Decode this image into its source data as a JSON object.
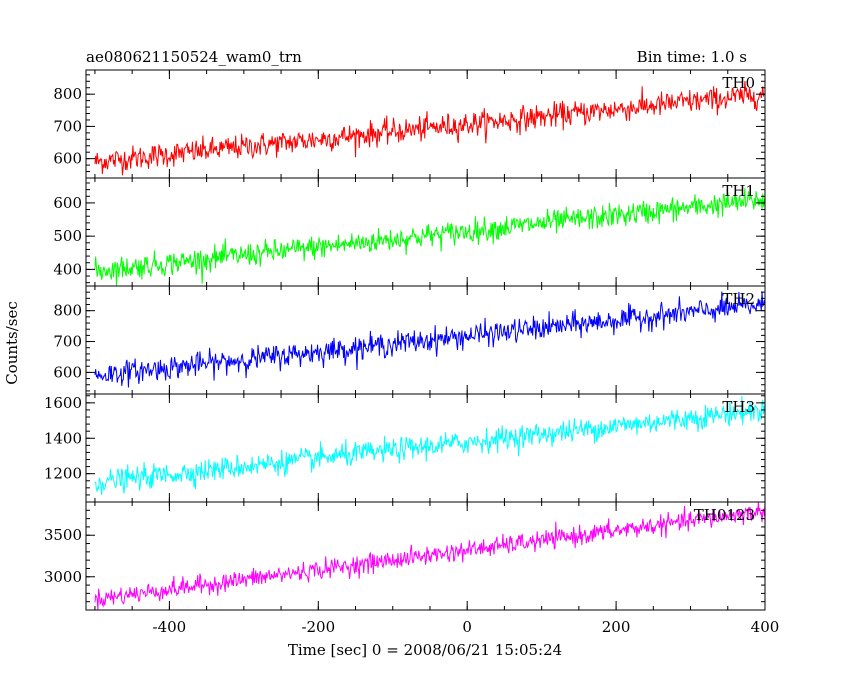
{
  "chart_data": {
    "type": "line",
    "title_left": "ae080621150524_wam0_trn",
    "title_right": "Bin time: 1.0 s",
    "xlabel": "Time [sec] 0 = 2008/06/21 15:05:24",
    "ylabel": "Counts/sec",
    "x_range": [
      -512,
      400
    ],
    "x_ticks": [
      -400,
      -200,
      0,
      200,
      400
    ],
    "grid": false,
    "panels": [
      {
        "name": "TH0",
        "color": "#ff0000",
        "ylim": [
          540,
          875
        ],
        "y_ticks": [
          600,
          700,
          800
        ],
        "start": 590,
        "end": 800,
        "noise": 32
      },
      {
        "name": "TH1",
        "color": "#00ff00",
        "ylim": [
          350,
          675
        ],
        "y_ticks": [
          400,
          500,
          600
        ],
        "start": 395,
        "end": 610,
        "noise": 30
      },
      {
        "name": "TH2",
        "color": "#0000ff",
        "ylim": [
          530,
          880
        ],
        "y_ticks": [
          600,
          700,
          800
        ],
        "start": 590,
        "end": 820,
        "noise": 32
      },
      {
        "name": "TH3",
        "color": "#00ffff",
        "ylim": [
          1040,
          1650
        ],
        "y_ticks": [
          1200,
          1400,
          1600
        ],
        "start": 1150,
        "end": 1560,
        "noise": 55
      },
      {
        "name": "TH0123",
        "color": "#ff00ff",
        "ylim": [
          2600,
          3900
        ],
        "y_ticks": [
          3000,
          3500
        ],
        "start": 2730,
        "end": 3790,
        "noise": 95
      }
    ]
  }
}
